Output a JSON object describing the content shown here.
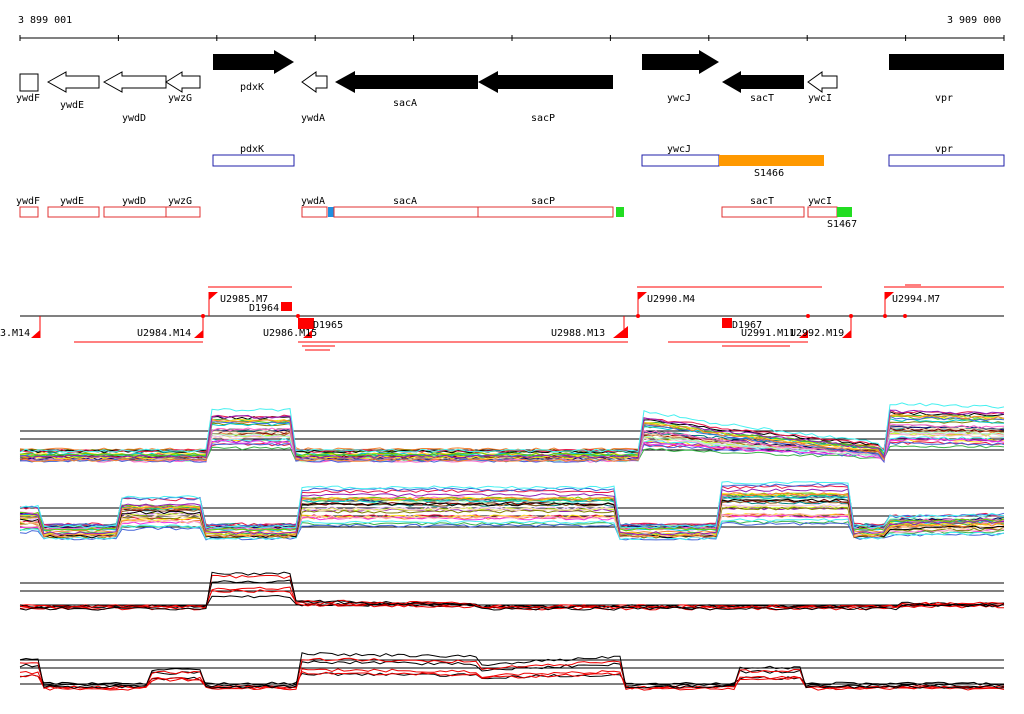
{
  "coordinates": {
    "start_label": "3 899 001",
    "end_label": "3 909 000"
  },
  "genes": [
    {
      "name": "ywdF",
      "strand": "-",
      "filled": false
    },
    {
      "name": "ywdE",
      "strand": "-",
      "filled": false
    },
    {
      "name": "ywdD",
      "strand": "-",
      "filled": false
    },
    {
      "name": "ywzG",
      "strand": "-",
      "filled": false
    },
    {
      "name": "pdxK",
      "strand": "+",
      "filled": true
    },
    {
      "name": "ywdA",
      "strand": "-",
      "filled": false
    },
    {
      "name": "sacA",
      "strand": "-",
      "filled": true
    },
    {
      "name": "sacP",
      "strand": "-",
      "filled": true
    },
    {
      "name": "ywcJ",
      "strand": "+",
      "filled": true
    },
    {
      "name": "sacT",
      "strand": "-",
      "filled": true
    },
    {
      "name": "ywcI",
      "strand": "-",
      "filled": false
    },
    {
      "name": "vpr",
      "strand": "+",
      "filled": true
    }
  ],
  "feature_track_1": [
    {
      "label": "pdxK",
      "kind": "gene",
      "color": "#1f1fa8"
    },
    {
      "label": "ywcJ",
      "kind": "gene",
      "color": "#1f1fa8"
    },
    {
      "label": "S1466",
      "kind": "segment",
      "color": "#ff9900"
    },
    {
      "label": "vpr",
      "kind": "gene",
      "color": "#1f1fa8"
    }
  ],
  "feature_track_2": [
    {
      "label": "ywdF",
      "kind": "gene",
      "color": "#e03030"
    },
    {
      "label": "ywdE",
      "kind": "gene",
      "color": "#e03030"
    },
    {
      "label": "ywdD",
      "kind": "gene",
      "color": "#e03030"
    },
    {
      "label": "ywzG",
      "kind": "gene",
      "color": "#e03030"
    },
    {
      "label": "ywdA",
      "kind": "gene",
      "color": "#e03030"
    },
    {
      "label": "sacA",
      "kind": "gene",
      "color": "#e03030"
    },
    {
      "label": "sacP",
      "kind": "gene",
      "color": "#e03030"
    },
    {
      "label": "sacT",
      "kind": "gene",
      "color": "#e03030"
    },
    {
      "label": "ywcI",
      "kind": "gene",
      "color": "#e03030"
    },
    {
      "label": "S1467",
      "kind": "segment",
      "color": "#22dd22"
    }
  ],
  "transcription_units": [
    {
      "label": "U2985.M7"
    },
    {
      "label": "D1964"
    },
    {
      "label": "U2990.M4"
    },
    {
      "label": "U2994.M7"
    },
    {
      "label": "3.M14"
    },
    {
      "label": "U2984.M14"
    },
    {
      "label": "U2986.M15"
    },
    {
      "label": "D1965"
    },
    {
      "label": "U2988.M13"
    },
    {
      "label": "D1967"
    },
    {
      "label": "U2991.M11"
    },
    {
      "label": "U2992.M19"
    }
  ],
  "colors": {
    "gene_fill": "#000000",
    "gene_outline": "#000000",
    "track1_gene": "#1f1fa8",
    "track2_gene": "#e03030",
    "orange_segment": "#ff9900",
    "green_segment": "#22dd22",
    "blue_marker": "#2090e0",
    "tu_red": "#ff0000"
  }
}
